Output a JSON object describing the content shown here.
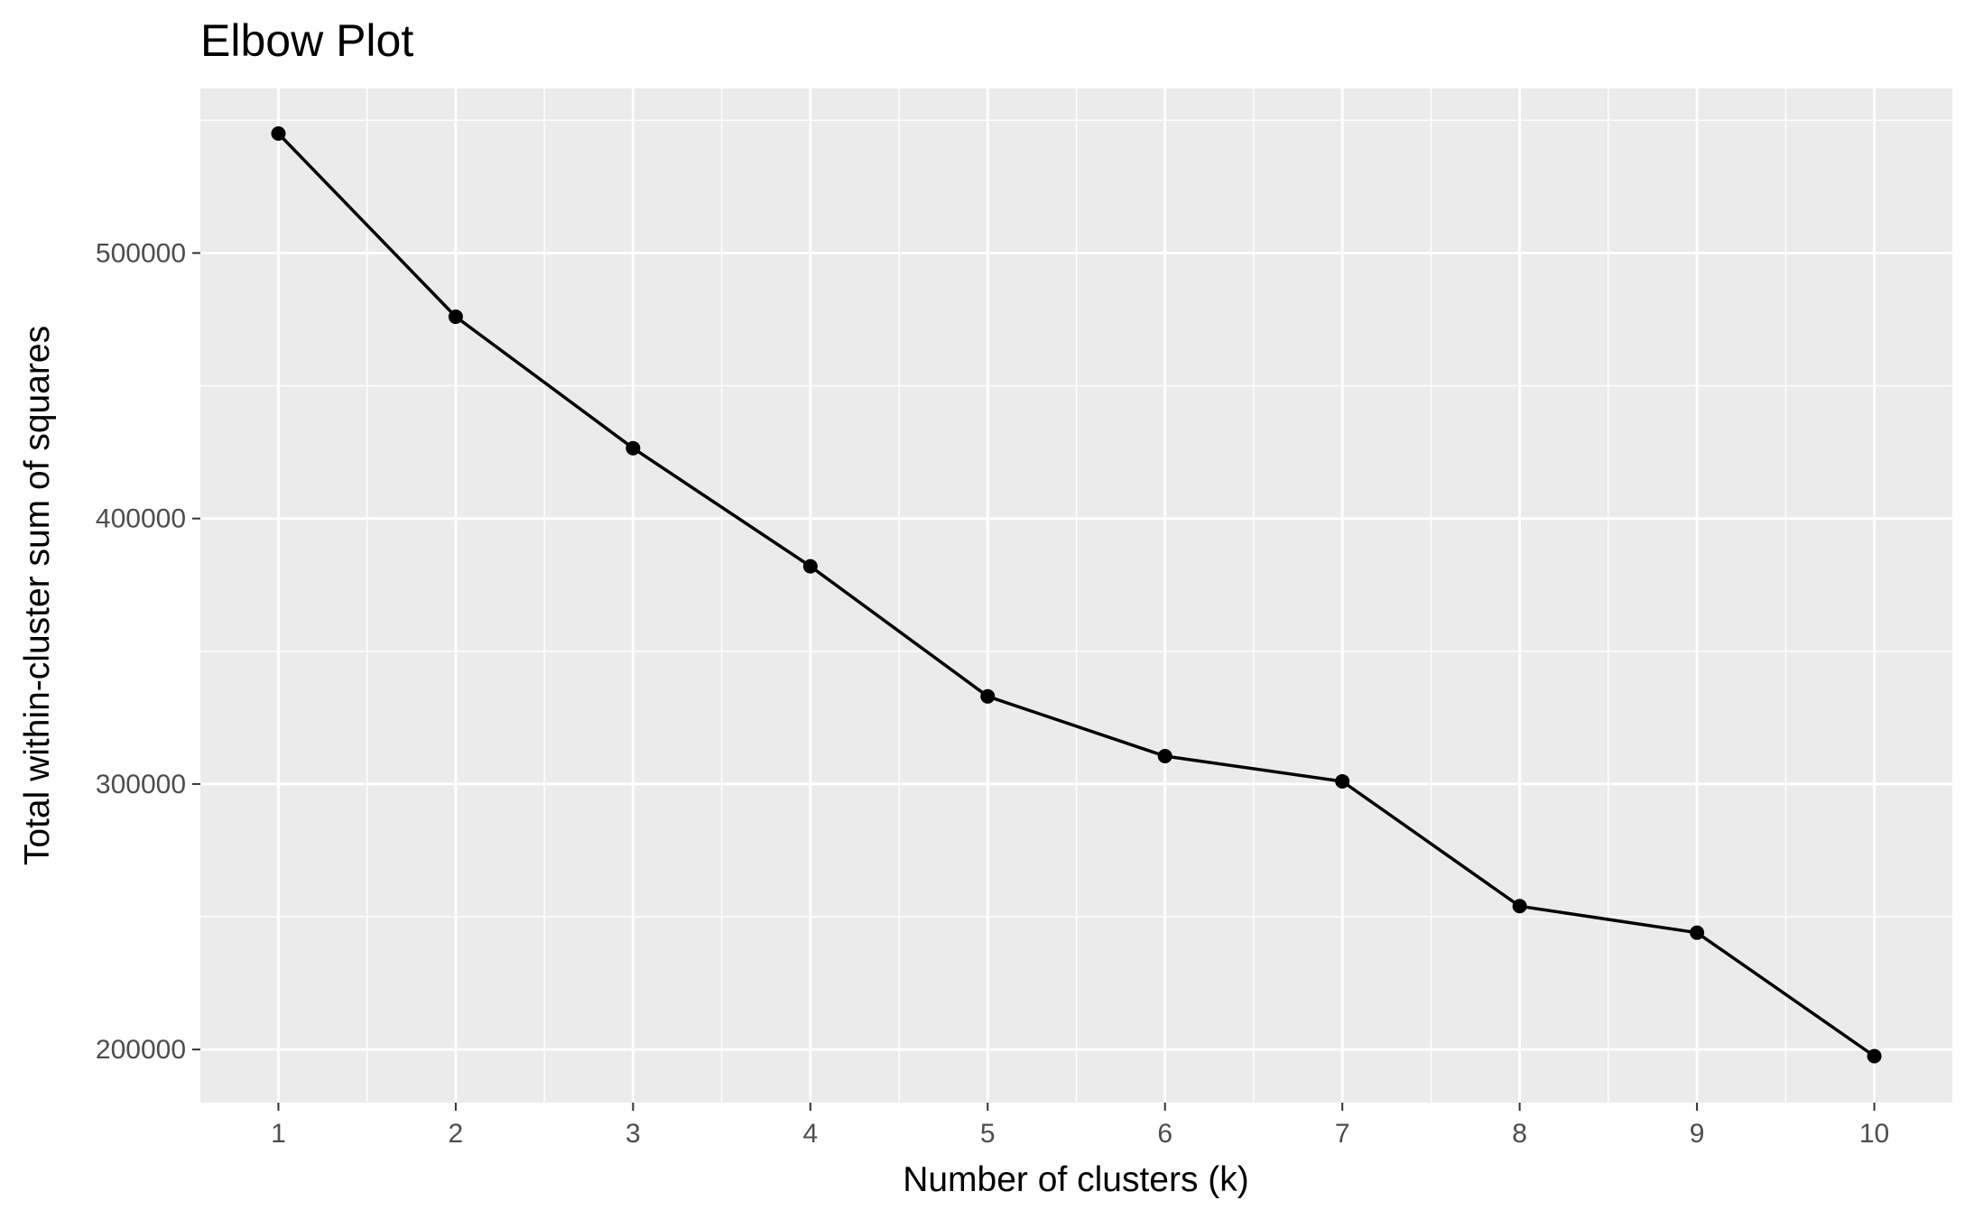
{
  "chart_data": {
    "type": "line",
    "title": "Elbow Plot",
    "xlabel": "Number of clusters (k)",
    "ylabel": "Total within-cluster sum of squares",
    "x": [
      1,
      2,
      3,
      4,
      5,
      6,
      7,
      8,
      9,
      10
    ],
    "series": [
      {
        "values": [
          545000,
          476000,
          426500,
          382000,
          333000,
          310500,
          301000,
          254000,
          244000,
          197500
        ]
      }
    ],
    "x_ticks": [
      "1",
      "2",
      "3",
      "4",
      "5",
      "6",
      "7",
      "8",
      "9",
      "10"
    ],
    "y_ticks": [
      "200000",
      "300000",
      "400000",
      "500000"
    ],
    "xlim": [
      0.56,
      10.44
    ],
    "ylim": [
      180000,
      562000
    ],
    "grid": true,
    "markers": true,
    "colors": {
      "panel": "#ebebeb",
      "grid": "#ffffff",
      "line": "#000000",
      "tick_label": "#4d4d4d"
    }
  }
}
